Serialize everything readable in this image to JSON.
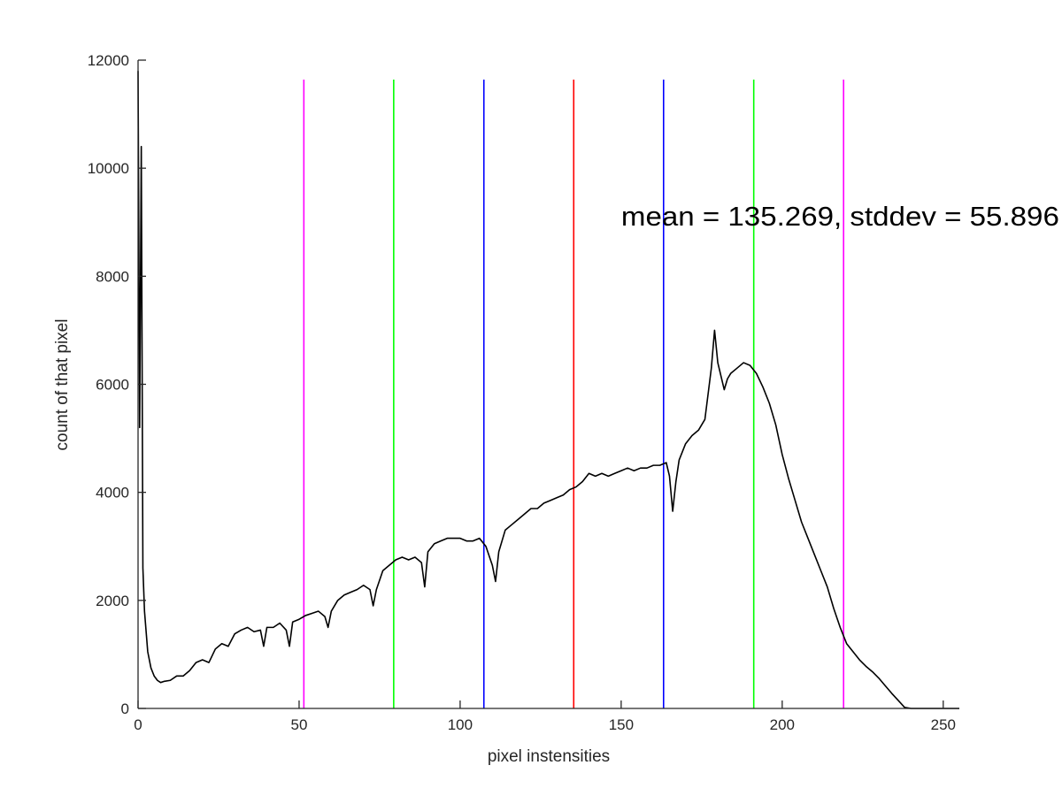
{
  "chart_data": {
    "type": "line",
    "xlabel": "pixel instensities",
    "ylabel": "count of that pixel",
    "xlim": [
      0,
      255
    ],
    "ylim": [
      0,
      12000
    ],
    "xticks": [
      0,
      50,
      100,
      150,
      200,
      250
    ],
    "yticks": [
      0,
      2000,
      4000,
      6000,
      8000,
      10000,
      12000
    ],
    "grid": false,
    "annotation": {
      "text": "mean = 135.269, stddev = 55.896",
      "x": 150,
      "y": 9100
    },
    "series": [
      {
        "color": "#000000",
        "x": [
          0,
          0.5,
          1,
          1.5,
          2,
          3,
          4,
          5,
          6,
          7,
          8,
          10,
          12,
          14,
          16,
          18,
          20,
          22,
          24,
          26,
          28,
          30,
          32,
          34,
          36,
          38,
          39,
          40,
          42,
          44,
          46,
          47,
          48,
          50,
          52,
          54,
          56,
          58,
          59,
          60,
          62,
          64,
          66,
          68,
          70,
          72,
          73,
          74,
          76,
          78,
          80,
          82,
          84,
          86,
          88,
          89,
          90,
          92,
          94,
          96,
          98,
          100,
          102,
          104,
          106,
          108,
          110,
          111,
          112,
          114,
          116,
          118,
          120,
          122,
          124,
          126,
          128,
          130,
          132,
          134,
          136,
          138,
          140,
          142,
          144,
          146,
          148,
          150,
          152,
          154,
          156,
          158,
          160,
          162,
          164,
          165,
          166,
          167,
          168,
          170,
          172,
          174,
          176,
          178,
          179,
          180,
          182,
          183,
          184,
          186,
          188,
          190,
          192,
          194,
          196,
          198,
          200,
          202,
          204,
          206,
          208,
          210,
          212,
          214,
          216,
          218,
          220,
          222,
          224,
          226,
          228,
          230,
          232,
          234,
          236,
          238,
          240,
          255
        ],
        "y": [
          11800,
          5200,
          10400,
          2600,
          1800,
          1050,
          750,
          600,
          520,
          480,
          500,
          520,
          600,
          600,
          700,
          850,
          900,
          850,
          1100,
          1200,
          1150,
          1380,
          1450,
          1500,
          1420,
          1450,
          1150,
          1500,
          1500,
          1580,
          1450,
          1150,
          1600,
          1650,
          1720,
          1760,
          1800,
          1700,
          1500,
          1800,
          2000,
          2100,
          2150,
          2200,
          2280,
          2200,
          1900,
          2200,
          2550,
          2650,
          2750,
          2800,
          2750,
          2800,
          2700,
          2250,
          2900,
          3050,
          3100,
          3150,
          3150,
          3150,
          3100,
          3100,
          3150,
          3000,
          2650,
          2350,
          2900,
          3300,
          3400,
          3500,
          3600,
          3700,
          3700,
          3800,
          3850,
          3900,
          3950,
          4050,
          4100,
          4200,
          4350,
          4300,
          4350,
          4300,
          4350,
          4400,
          4450,
          4400,
          4450,
          4450,
          4500,
          4500,
          4550,
          4300,
          3650,
          4200,
          4600,
          4900,
          5050,
          5150,
          5350,
          6300,
          7000,
          6400,
          5900,
          6100,
          6200,
          6300,
          6400,
          6350,
          6200,
          5950,
          5650,
          5250,
          4700,
          4250,
          3850,
          3450,
          3150,
          2850,
          2550,
          2250,
          1850,
          1500,
          1200,
          1050,
          900,
          780,
          680,
          560,
          420,
          280,
          150,
          20,
          0,
          0
        ]
      }
    ],
    "vertical_lines": [
      {
        "x": 135.269,
        "color": "#ff0000"
      },
      {
        "x": 107.373,
        "color": "#0000ff"
      },
      {
        "x": 163.165,
        "color": "#0000ff"
      },
      {
        "x": 79.373,
        "color": "#00ff00"
      },
      {
        "x": 191.165,
        "color": "#00ff00"
      },
      {
        "x": 51.477,
        "color": "#ff00ff"
      },
      {
        "x": 219.061,
        "color": "#ff00ff"
      }
    ]
  }
}
